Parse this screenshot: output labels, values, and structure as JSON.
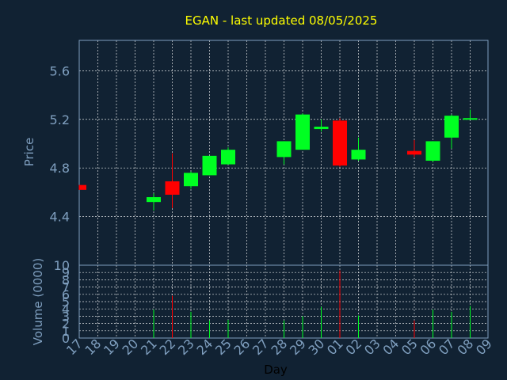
{
  "chart_data": {
    "type": "candlestick",
    "title": "EGAN - last updated 08/05/2025",
    "xlabel": "Day",
    "ylabel": "Price",
    "volume_label": "Volume (0000)",
    "grid": true,
    "x_ticks": [
      "17",
      "18",
      "19",
      "20",
      "21",
      "22",
      "23",
      "24",
      "25",
      "26",
      "27",
      "28",
      "29",
      "30",
      "01",
      "02",
      "03",
      "04",
      "05",
      "06",
      "07",
      "08",
      "09"
    ],
    "price_ticks": [
      "4.4",
      "4.8",
      "5.2",
      "5.6"
    ],
    "price_ylim": [
      4.0,
      5.85
    ],
    "volume_ticks": [
      "0",
      "1",
      "2",
      "3",
      "4",
      "5",
      "6",
      "7",
      "8",
      "9",
      "10"
    ],
    "volume_ylim": [
      0,
      10
    ],
    "colors": {
      "up": "#00ff22",
      "down": "#ff0000",
      "background": "#112233",
      "title": "#ffff00",
      "axis_text": "#7f9fbf"
    },
    "candles": [
      {
        "day": "17",
        "open": 4.66,
        "high": 4.66,
        "low": 4.62,
        "close": 4.62,
        "volume": 0
      },
      {
        "day": "21",
        "open": 4.52,
        "high": 4.59,
        "low": 4.45,
        "close": 4.56,
        "volume": 3.9
      },
      {
        "day": "22",
        "open": 4.69,
        "high": 4.92,
        "low": 4.47,
        "close": 4.58,
        "volume": 5.8
      },
      {
        "day": "23",
        "open": 4.65,
        "high": 4.77,
        "low": 4.63,
        "close": 4.76,
        "volume": 3.6
      },
      {
        "day": "24",
        "open": 4.74,
        "high": 4.9,
        "low": 4.74,
        "close": 4.9,
        "volume": 2.4
      },
      {
        "day": "25",
        "open": 4.83,
        "high": 4.97,
        "low": 4.83,
        "close": 4.95,
        "volume": 2.5
      },
      {
        "day": "28",
        "open": 4.89,
        "high": 5.02,
        "low": 4.83,
        "close": 5.02,
        "volume": 2.4
      },
      {
        "day": "29",
        "open": 4.95,
        "high": 5.25,
        "low": 4.95,
        "close": 5.24,
        "volume": 3.0
      },
      {
        "day": "30",
        "open": 5.12,
        "high": 5.2,
        "low": 5.1,
        "close": 5.14,
        "volume": 4.3
      },
      {
        "day": "01",
        "open": 5.19,
        "high": 5.21,
        "low": 4.81,
        "close": 4.82,
        "volume": 9.3
      },
      {
        "day": "02",
        "open": 4.87,
        "high": 5.05,
        "low": 4.86,
        "close": 4.95,
        "volume": 3.1
      },
      {
        "day": "05",
        "open": 4.94,
        "high": 5.03,
        "low": 4.89,
        "close": 4.91,
        "volume": 2.4
      },
      {
        "day": "06",
        "open": 4.86,
        "high": 5.02,
        "low": 4.85,
        "close": 5.02,
        "volume": 3.9
      },
      {
        "day": "07",
        "open": 5.05,
        "high": 5.24,
        "low": 4.96,
        "close": 5.23,
        "volume": 3.6
      },
      {
        "day": "08",
        "open": 5.2,
        "high": 5.28,
        "low": 5.2,
        "close": 5.21,
        "volume": 4.4
      }
    ]
  }
}
